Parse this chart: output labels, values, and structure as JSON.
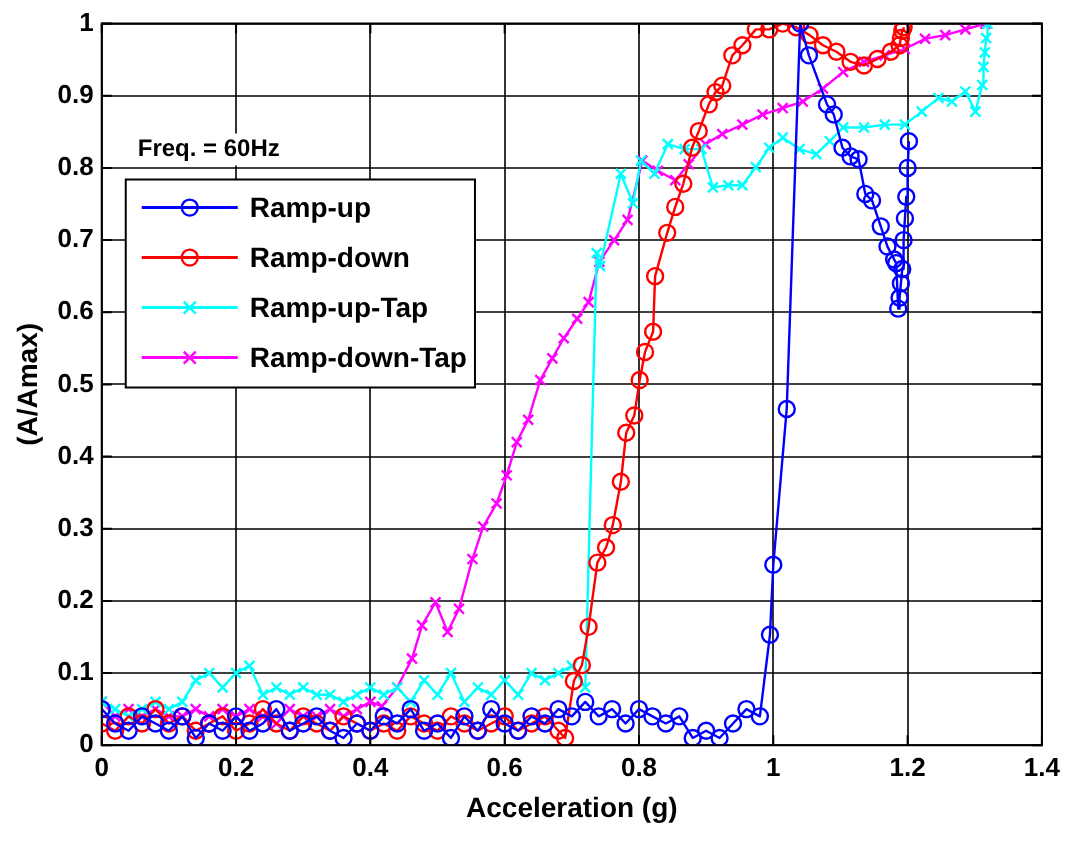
{
  "chart_data": {
    "type": "line",
    "xlabel": "Acceleration (g)",
    "ylabel": "(A/Amax)",
    "xlim": [
      0,
      1.4
    ],
    "ylim": [
      0,
      1
    ],
    "xticks": [
      0,
      0.2,
      0.4,
      0.6,
      0.8,
      1,
      1.2,
      1.4
    ],
    "yticks": [
      0,
      0.1,
      0.2,
      0.3,
      0.4,
      0.5,
      0.6,
      0.7,
      0.8,
      0.9,
      1
    ],
    "grid": true,
    "legend": "top left",
    "annotations": [
      "Freq. = 60Hz"
    ],
    "series": [
      {
        "name": "Ramp-up",
        "color": "#0000ff",
        "marker": "circle",
        "x": [
          0,
          0.02,
          0.04,
          0.06,
          0.08,
          0.1,
          0.12,
          0.14,
          0.16,
          0.18,
          0.2,
          0.22,
          0.24,
          0.26,
          0.28,
          0.3,
          0.32,
          0.34,
          0.36,
          0.38,
          0.4,
          0.42,
          0.44,
          0.46,
          0.48,
          0.5,
          0.52,
          0.54,
          0.56,
          0.58,
          0.6,
          0.62,
          0.64,
          0.66,
          0.68,
          0.7,
          0.72,
          0.74,
          0.76,
          0.78,
          0.8,
          0.82,
          0.84,
          0.86,
          0.88,
          0.9,
          0.92,
          0.94,
          0.96,
          0.98,
          0.995,
          1.0,
          1.02,
          1.04,
          1.053,
          1.08,
          1.09,
          1.103,
          1.115,
          1.127,
          1.137,
          1.147,
          1.16,
          1.17,
          1.18,
          1.183,
          1.186,
          1.188,
          1.19,
          1.192,
          1.194,
          1.196,
          1.198,
          1.2,
          1.202
        ],
        "values": [
          0.05,
          0.03,
          0.02,
          0.04,
          0.03,
          0.02,
          0.04,
          0.01,
          0.03,
          0.02,
          0.04,
          0.02,
          0.03,
          0.05,
          0.02,
          0.03,
          0.04,
          0.02,
          0.01,
          0.03,
          0.02,
          0.04,
          0.03,
          0.05,
          0.02,
          0.03,
          0.01,
          0.04,
          0.02,
          0.05,
          0.03,
          0.02,
          0.04,
          0.03,
          0.05,
          0.04,
          0.06,
          0.04,
          0.05,
          0.03,
          0.05,
          0.04,
          0.03,
          0.04,
          0.01,
          0.02,
          0.01,
          0.03,
          0.05,
          0.04,
          0.153,
          0.25,
          0.466,
          1.0,
          0.956,
          0.888,
          0.874,
          0.828,
          0.816,
          0.812,
          0.764,
          0.755,
          0.719,
          0.691,
          0.673,
          0.668,
          0.605,
          0.62,
          0.64,
          0.66,
          0.7,
          0.73,
          0.76,
          0.8,
          0.837
        ]
      },
      {
        "name": "Ramp-down",
        "color": "#ff0000",
        "marker": "circle",
        "x": [
          0,
          0.02,
          0.04,
          0.06,
          0.08,
          0.1,
          0.12,
          0.14,
          0.16,
          0.18,
          0.2,
          0.22,
          0.24,
          0.26,
          0.28,
          0.3,
          0.32,
          0.34,
          0.36,
          0.38,
          0.4,
          0.42,
          0.44,
          0.46,
          0.48,
          0.5,
          0.52,
          0.54,
          0.56,
          0.58,
          0.6,
          0.62,
          0.64,
          0.66,
          0.68,
          0.69,
          0.703,
          0.715,
          0.725,
          0.738,
          0.751,
          0.761,
          0.773,
          0.781,
          0.793,
          0.801,
          0.809,
          0.821,
          0.824,
          0.842,
          0.854,
          0.866,
          0.879,
          0.889,
          0.904,
          0.914,
          0.924,
          0.939,
          0.954,
          0.974,
          0.994,
          1.014,
          1.034,
          1.054,
          1.074,
          1.094,
          1.115,
          1.135,
          1.155,
          1.175,
          1.188,
          1.19,
          1.192,
          1.194
        ],
        "values": [
          0.03,
          0.02,
          0.04,
          0.03,
          0.05,
          0.03,
          0.04,
          0.02,
          0.03,
          0.04,
          0.02,
          0.03,
          0.05,
          0.03,
          0.02,
          0.04,
          0.03,
          0.02,
          0.04,
          0.03,
          0.02,
          0.03,
          0.02,
          0.04,
          0.03,
          0.02,
          0.04,
          0.03,
          0.02,
          0.03,
          0.04,
          0.02,
          0.03,
          0.04,
          0.02,
          0.01,
          0.089,
          0.111,
          0.164,
          0.253,
          0.274,
          0.305,
          0.365,
          0.433,
          0.457,
          0.506,
          0.545,
          0.573,
          0.65,
          0.71,
          0.746,
          0.778,
          0.828,
          0.851,
          0.888,
          0.905,
          0.914,
          0.956,
          0.97,
          0.992,
          0.992,
          1.0,
          0.995,
          0.984,
          0.97,
          0.961,
          0.947,
          0.942,
          0.951,
          0.961,
          0.97,
          0.98,
          0.99,
          0.995
        ]
      },
      {
        "name": "Ramp-up-Tap",
        "color": "#00ffff",
        "marker": "cross",
        "x": [
          0,
          0.02,
          0.04,
          0.06,
          0.08,
          0.1,
          0.12,
          0.14,
          0.16,
          0.18,
          0.2,
          0.22,
          0.24,
          0.26,
          0.28,
          0.3,
          0.32,
          0.34,
          0.36,
          0.38,
          0.4,
          0.42,
          0.44,
          0.46,
          0.48,
          0.5,
          0.52,
          0.54,
          0.56,
          0.58,
          0.6,
          0.62,
          0.64,
          0.66,
          0.68,
          0.7,
          0.72,
          0.737,
          0.742,
          0.773,
          0.791,
          0.803,
          0.823,
          0.843,
          0.868,
          0.893,
          0.91,
          0.933,
          0.954,
          0.974,
          0.994,
          1.014,
          1.039,
          1.064,
          1.084,
          1.104,
          1.135,
          1.166,
          1.196,
          1.221,
          1.246,
          1.266,
          1.286,
          1.301,
          1.311,
          1.313,
          1.315,
          1.317,
          1.319
        ],
        "values": [
          0.06,
          0.05,
          0.04,
          0.05,
          0.06,
          0.05,
          0.06,
          0.09,
          0.1,
          0.08,
          0.1,
          0.11,
          0.07,
          0.08,
          0.07,
          0.08,
          0.07,
          0.07,
          0.06,
          0.07,
          0.08,
          0.07,
          0.08,
          0.06,
          0.09,
          0.07,
          0.1,
          0.06,
          0.08,
          0.07,
          0.09,
          0.07,
          0.1,
          0.09,
          0.1,
          0.11,
          0.08,
          0.682,
          0.664,
          0.792,
          0.751,
          0.81,
          0.792,
          0.833,
          0.826,
          0.826,
          0.773,
          0.776,
          0.776,
          0.801,
          0.828,
          0.842,
          0.826,
          0.819,
          0.837,
          0.856,
          0.856,
          0.86,
          0.86,
          0.878,
          0.897,
          0.892,
          0.906,
          0.878,
          0.915,
          0.94,
          0.96,
          0.98,
          1.0
        ]
      },
      {
        "name": "Ramp-down-Tap",
        "color": "#ff00ff",
        "marker": "cross",
        "x": [
          0,
          0.02,
          0.04,
          0.06,
          0.08,
          0.1,
          0.12,
          0.14,
          0.16,
          0.18,
          0.2,
          0.22,
          0.24,
          0.26,
          0.28,
          0.3,
          0.32,
          0.34,
          0.36,
          0.38,
          0.4,
          0.417,
          0.44,
          0.462,
          0.477,
          0.497,
          0.515,
          0.532,
          0.552,
          0.568,
          0.588,
          0.603,
          0.618,
          0.635,
          0.653,
          0.671,
          0.688,
          0.708,
          0.725,
          0.741,
          0.763,
          0.783,
          0.805,
          0.828,
          0.854,
          0.874,
          0.899,
          0.924,
          0.954,
          0.984,
          1.014,
          1.044,
          1.074,
          1.104,
          1.135,
          1.166,
          1.196,
          1.226,
          1.256,
          1.286,
          1.316
        ],
        "values": [
          0.06,
          0.04,
          0.05,
          0.04,
          0.05,
          0.04,
          0.04,
          0.05,
          0.04,
          0.05,
          0.04,
          0.05,
          0.04,
          0.03,
          0.05,
          0.04,
          0.04,
          0.05,
          0.04,
          0.05,
          0.06,
          0.054,
          0.08,
          0.12,
          0.166,
          0.198,
          0.157,
          0.189,
          0.258,
          0.303,
          0.335,
          0.374,
          0.42,
          0.451,
          0.506,
          0.536,
          0.564,
          0.591,
          0.614,
          0.67,
          0.7,
          0.728,
          0.81,
          0.796,
          0.783,
          0.805,
          0.833,
          0.847,
          0.86,
          0.874,
          0.883,
          0.892,
          0.91,
          0.933,
          0.947,
          0.956,
          0.965,
          0.979,
          0.984,
          0.992,
          1.0
        ]
      }
    ]
  }
}
